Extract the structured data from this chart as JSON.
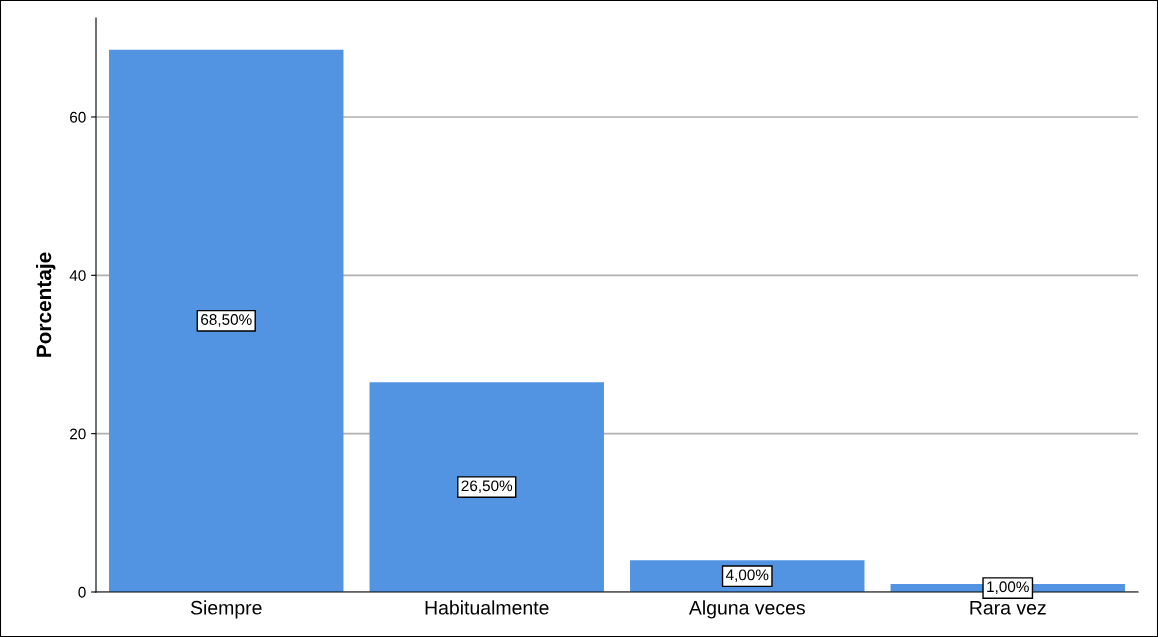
{
  "chart_data": {
    "type": "bar",
    "ylabel": "Porcentaje",
    "categories": [
      "Siempre",
      "Habitualmente",
      "Alguna veces",
      "Rara vez"
    ],
    "values": [
      68.5,
      26.5,
      4.0,
      1.0
    ],
    "value_labels": [
      "68,50%",
      "26,50%",
      "4,00%",
      "1,00%"
    ],
    "color": "#5294e2",
    "ylim": [
      0,
      72.5
    ],
    "yticks": [
      0,
      20,
      40,
      60
    ],
    "grid": "y"
  }
}
